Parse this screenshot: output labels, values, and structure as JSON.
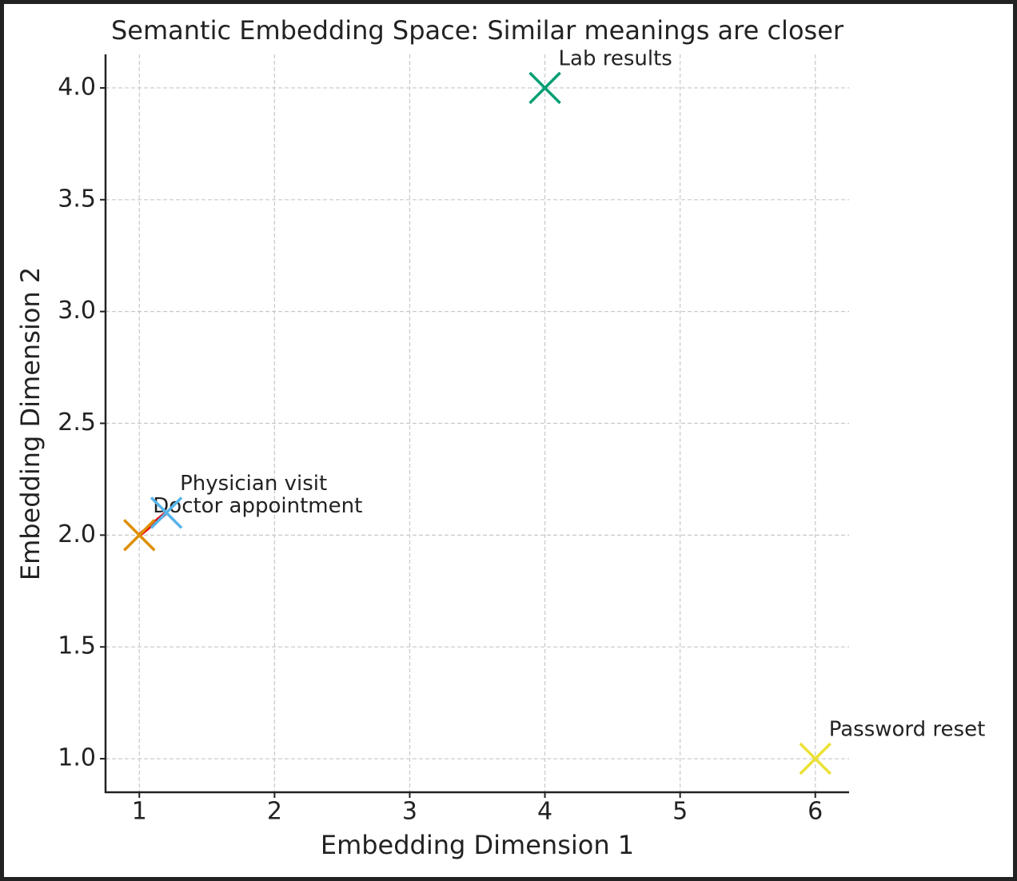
{
  "chart_data": {
    "type": "scatter",
    "title": "Semantic Embedding Space: Similar meanings are closer",
    "x_label": "Embedding Dimension 1",
    "y_label": "Embedding Dimension 2",
    "xlim": [
      0.75,
      6.25
    ],
    "ylim": [
      0.85,
      4.15
    ],
    "xticks": [
      1,
      2,
      3,
      4,
      5,
      6
    ],
    "yticks": [
      {
        "value": 1,
        "label": "1.0"
      },
      {
        "value": 1.5,
        "label": "1.5"
      },
      {
        "value": 2,
        "label": "2.0"
      },
      {
        "value": 2.5,
        "label": "2.5"
      },
      {
        "value": 3,
        "label": "3.0"
      },
      {
        "value": 3.5,
        "label": "3.5"
      },
      {
        "value": 4,
        "label": "4.0"
      }
    ],
    "grid": true,
    "series": [
      {
        "name": "Doctor appointment",
        "color": "#de8f05",
        "x": [
          1
        ],
        "y": [
          2
        ]
      },
      {
        "name": "Physician visit",
        "color": "#56b4e9",
        "x": [
          1.2
        ],
        "y": [
          2.1
        ]
      },
      {
        "name": "Lab results",
        "color": "#029e73",
        "x": [
          4
        ],
        "y": [
          4
        ]
      },
      {
        "name": "Password reset",
        "color": "#ece133",
        "x": [
          6
        ],
        "y": [
          1
        ]
      }
    ],
    "connect": [
      0,
      1
    ],
    "connect_color": "#e8000b"
  }
}
